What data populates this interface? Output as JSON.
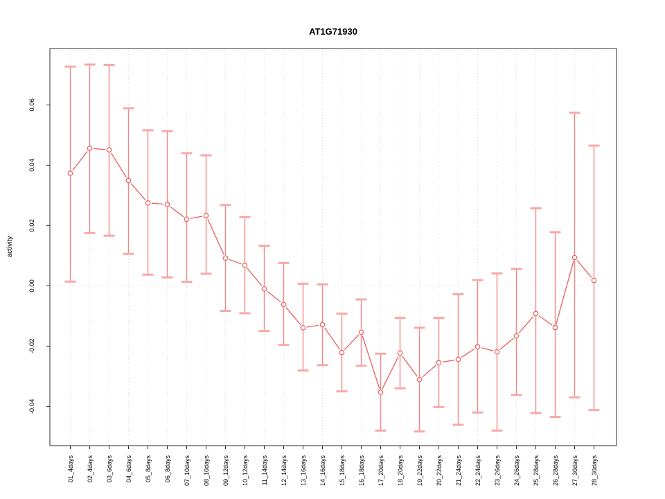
{
  "title": "AT1G71930",
  "chart_data": {
    "type": "line",
    "title": "AT1G71930",
    "xlabel": "",
    "ylabel": "activity",
    "legend_position": "none",
    "grid": {
      "vertical": "dotted",
      "horizontal_zero_line": "dotted"
    },
    "ylim": [
      -0.053,
      0.0787
    ],
    "yticks": {
      "values": [
        0.06,
        0.04,
        0.02,
        0.0,
        -0.02,
        -0.04
      ],
      "labels": [
        "0.06",
        "0.04",
        "0.02",
        "0.00",
        "-0.02",
        "-0.04"
      ]
    },
    "categories": [
      "01_4days",
      "02_4days",
      "03_6days",
      "04_6days",
      "05_8days",
      "06_8days",
      "07_10days",
      "08_10days",
      "09_12days",
      "10_12days",
      "11_14days",
      "12_14days",
      "13_16days",
      "14_16days",
      "15_18days",
      "16_18days",
      "17_20days",
      "18_20days",
      "19_22days",
      "20_22days",
      "21_24days",
      "22_24days",
      "23_26days",
      "24_26days",
      "25_28days",
      "26_28days",
      "27_30days",
      "28_30days"
    ],
    "series": [
      {
        "name": "AT1G71930 activity",
        "marker": "open-circle",
        "values": [
          0.0373,
          0.0456,
          0.0451,
          0.0349,
          0.0275,
          0.027,
          0.0221,
          0.0233,
          0.0092,
          0.0068,
          -0.001,
          -0.0062,
          -0.0139,
          -0.0129,
          -0.0221,
          -0.0154,
          -0.0353,
          -0.0223,
          -0.0311,
          -0.0255,
          -0.0244,
          -0.0202,
          -0.0219,
          -0.0166,
          -0.0092,
          -0.0138,
          0.0094,
          0.0018
        ]
      }
    ],
    "error_low": [
      0.0014,
      0.0175,
      0.0166,
      0.0106,
      0.0037,
      0.0028,
      0.0013,
      0.004,
      -0.0083,
      -0.0091,
      -0.015,
      -0.0196,
      -0.0281,
      -0.0263,
      -0.035,
      -0.0265,
      -0.048,
      -0.034,
      -0.0483,
      -0.0402,
      -0.0461,
      -0.042,
      -0.048,
      -0.0362,
      -0.0422,
      -0.0435,
      -0.037,
      -0.0412
    ],
    "error_high": [
      0.0727,
      0.0734,
      0.0733,
      0.0589,
      0.0516,
      0.0513,
      0.044,
      0.0433,
      0.0268,
      0.0228,
      0.0133,
      0.0076,
      0.0007,
      0.0005,
      -0.0092,
      -0.0045,
      -0.0225,
      -0.0106,
      -0.0139,
      -0.0106,
      -0.0028,
      0.0019,
      0.0041,
      0.0056,
      0.0257,
      0.0178,
      0.0574,
      0.0465
    ],
    "colors": {
      "series": "#f05a5a",
      "error_bar": "#f58585",
      "error_cap": "#f8a8a8",
      "grid": "#dcdcdc",
      "axis": "#2b2b2b",
      "text": "#000000",
      "background": "#ffffff"
    }
  }
}
